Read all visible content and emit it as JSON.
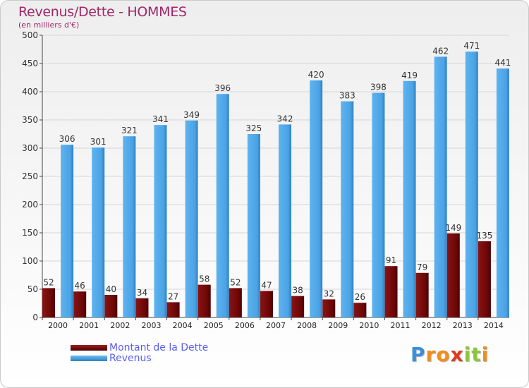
{
  "chart_data": {
    "type": "bar",
    "title": "Revenus/Dette - HOMMES",
    "subtitle": "(en milliers d'€)",
    "categories": [
      "2000",
      "2001",
      "2002",
      "2003",
      "2004",
      "2005",
      "2006",
      "2007",
      "2008",
      "2009",
      "2010",
      "2011",
      "2012",
      "2013",
      "2014"
    ],
    "series": [
      {
        "name": "Montant de la Dette",
        "color": "#7a0a0a",
        "values": [
          52,
          46,
          40,
          34,
          27,
          58,
          52,
          47,
          38,
          32,
          26,
          91,
          79,
          149,
          135
        ]
      },
      {
        "name": "Revenus",
        "color": "#4aa3e6",
        "values": [
          306,
          301,
          321,
          341,
          349,
          396,
          325,
          342,
          420,
          383,
          398,
          419,
          462,
          471,
          441
        ]
      }
    ],
    "ylim": [
      0,
      500
    ],
    "yticks": [
      0,
      50,
      100,
      150,
      200,
      250,
      300,
      350,
      400,
      450,
      500
    ],
    "grid": true,
    "legend_position": "bottom-left"
  },
  "logo": {
    "letters": [
      "P",
      "r",
      "o",
      "x",
      "i",
      "t",
      "i"
    ],
    "colors": [
      "#3b8fd9",
      "#f28c1c",
      "#f28c1c",
      "#e23a1e",
      "#8cc63f",
      "#8cc63f",
      "#f28c1c"
    ]
  }
}
